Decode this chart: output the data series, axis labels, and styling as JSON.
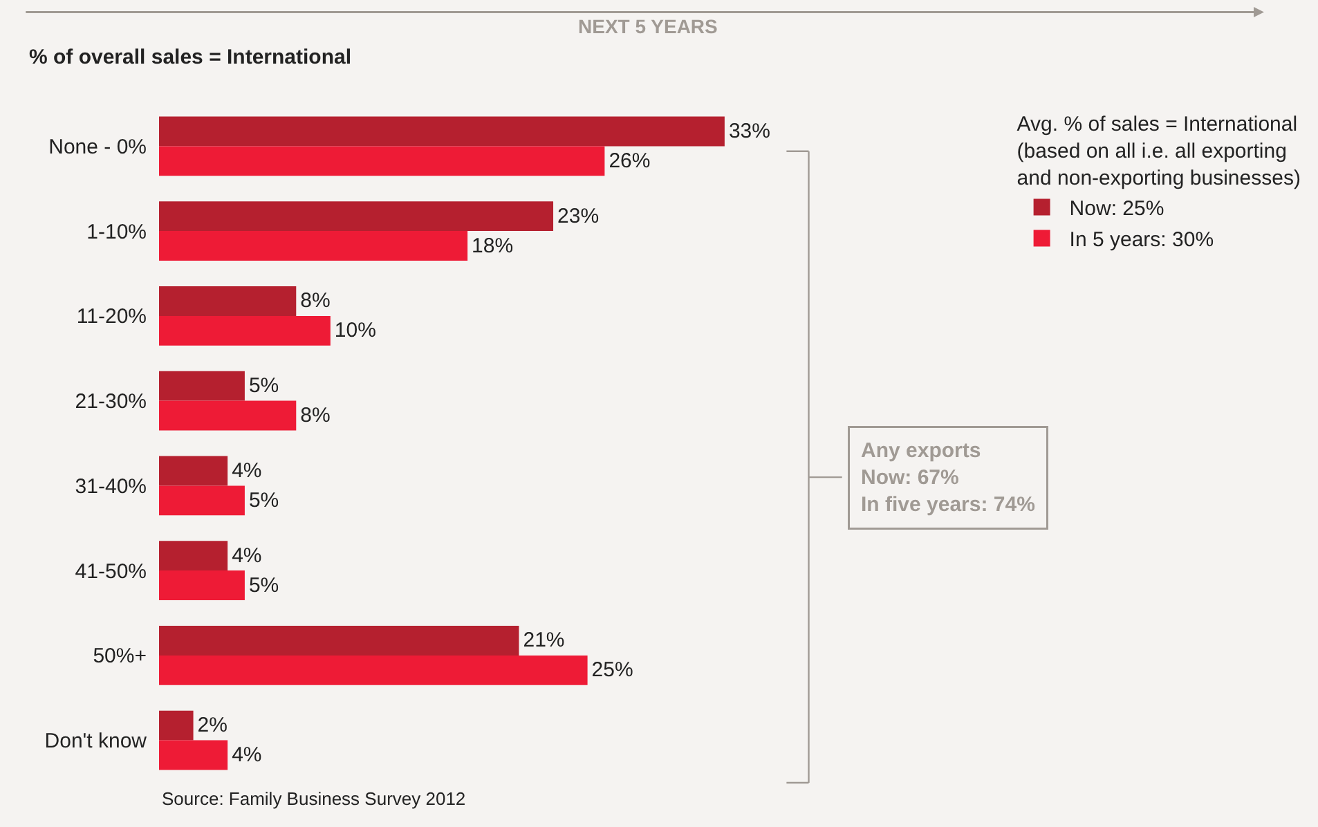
{
  "chart_data": {
    "type": "bar",
    "orientation": "horizontal",
    "ylabel": "% of overall sales = International",
    "categories": [
      "None - 0%",
      "1-10%",
      "11-20%",
      "21-30%",
      "31-40%",
      "41-50%",
      "50%+",
      "Don't know"
    ],
    "series": [
      {
        "name": "Now: 25%",
        "color": "#b5202f",
        "values": [
          33,
          23,
          8,
          5,
          4,
          4,
          21,
          2
        ],
        "value_labels": [
          "33%",
          "23%",
          "8%",
          "5%",
          "4%",
          "4%",
          "21%",
          "2%"
        ]
      },
      {
        "name": "In 5 years: 30%",
        "color": "#ee1b36",
        "values": [
          26,
          18,
          10,
          8,
          5,
          5,
          25,
          4
        ],
        "value_labels": [
          "26%",
          "18%",
          "10%",
          "8%",
          "5%",
          "5%",
          "25%",
          "4%"
        ]
      }
    ],
    "legend": "top right",
    "legend_title": "Avg. % of sales = International\n(based on all i.e. all exporting\nand non-exporting businesses)",
    "grid": false,
    "annotations": [
      "NEXT 5 YEARS",
      "Any exports\nNow: 67%\nIn five years: 74%",
      "Source: Family Business Survey 2012"
    ]
  }
}
